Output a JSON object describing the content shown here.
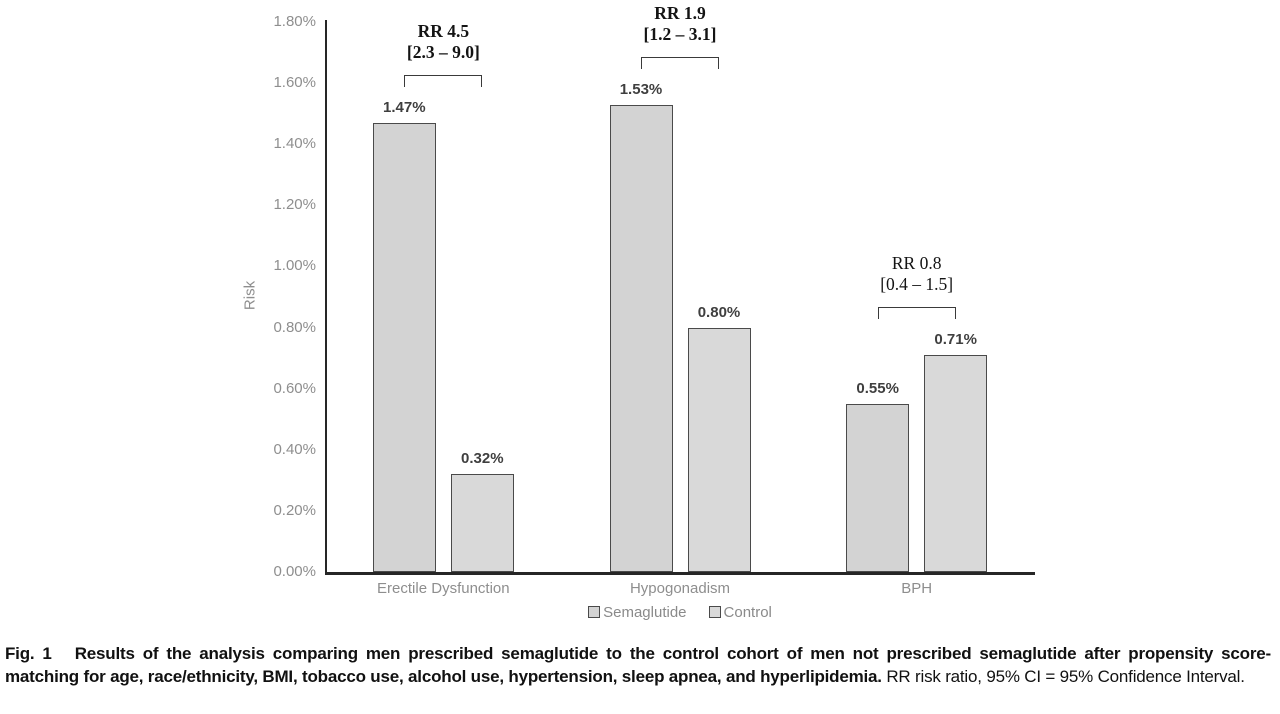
{
  "chart_data": {
    "type": "bar",
    "title": "",
    "xlabel": "",
    "ylabel": "Risk",
    "ylim": [
      0,
      1.8
    ],
    "ytick_step": 0.2,
    "ytick_labels": [
      "0.00%",
      "0.20%",
      "0.40%",
      "0.60%",
      "0.80%",
      "1.00%",
      "1.20%",
      "1.40%",
      "1.60%",
      "1.80%"
    ],
    "grid": false,
    "categories": [
      "Erectile Dysfunction",
      "Hypogonadism",
      "BPH"
    ],
    "series": [
      {
        "name": "Semaglutide",
        "values": [
          1.47,
          1.53,
          0.55
        ],
        "labels": [
          "1.47%",
          "1.53%",
          "0.55%"
        ],
        "color": "#d3d3d3"
      },
      {
        "name": "Control",
        "values": [
          0.32,
          0.8,
          0.71
        ],
        "labels": [
          "0.32%",
          "0.80%",
          "0.71%"
        ],
        "color": "#d9d9d9"
      }
    ],
    "annotations": [
      {
        "category": "Erectile Dysfunction",
        "line1": "RR 4.5",
        "line2": "[2.3 – 9.0]",
        "bold": true
      },
      {
        "category": "Hypogonadism",
        "line1": "RR 1.9",
        "line2": "[1.2 – 3.1]",
        "bold": true
      },
      {
        "category": "BPH",
        "line1": "RR 0.8",
        "line2": "[0.4 – 1.5]",
        "bold": false
      }
    ],
    "legend": [
      "Semaglutide",
      "Control"
    ],
    "legend_position": "bottom"
  },
  "colors": {
    "axis": "#262626",
    "bar_border": "#4a4a4a",
    "tick_text": "#8e8e8e",
    "value_text": "#3f3f3f",
    "annotation_text": "#141414"
  },
  "figure": {
    "caption_label": "Fig. 1",
    "caption_bold": "Results of the analysis comparing men prescribed semaglutide to the control cohort of men not prescribed semaglutide after propensity score-matching for age, race/ethnicity, BMI, tobacco use, alcohol use, hypertension, sleep apnea, and hyperlipidemia.",
    "caption_regular": "RR risk ratio, 95% CI = 95% Confidence Interval."
  }
}
